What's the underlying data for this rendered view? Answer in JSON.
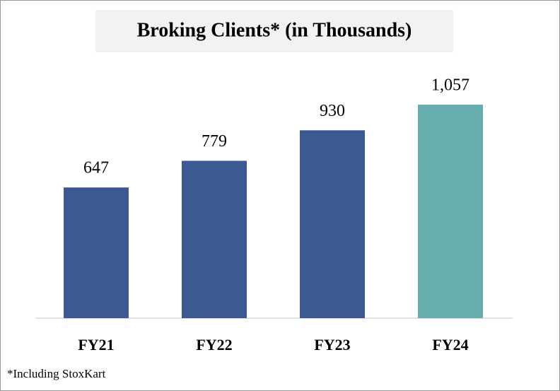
{
  "chart_data": {
    "type": "bar",
    "title": "Broking Clients* (in Thousands)",
    "categories": [
      "FY21",
      "FY22",
      "FY23",
      "FY24"
    ],
    "values": [
      647,
      779,
      930,
      1057
    ],
    "value_labels": [
      "647",
      "779",
      "930",
      "1,057"
    ],
    "colors": [
      "#3b5a93",
      "#3b5a93",
      "#3b5a93",
      "#66aeae"
    ],
    "footnote": "*Including StoxKart"
  }
}
